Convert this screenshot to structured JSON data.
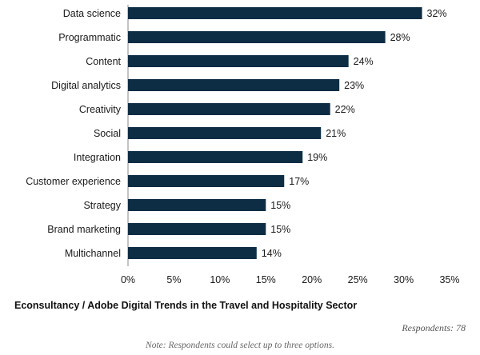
{
  "chart_data": {
    "type": "bar",
    "orientation": "horizontal",
    "categories": [
      "Data science",
      "Programmatic",
      "Content",
      "Digital analytics",
      "Creativity",
      "Social",
      "Integration",
      "Customer experience",
      "Strategy",
      "Brand marketing",
      "Multichannel"
    ],
    "values": [
      32,
      28,
      24,
      23,
      22,
      21,
      19,
      17,
      15,
      15,
      14
    ],
    "value_labels": [
      "32%",
      "28%",
      "24%",
      "23%",
      "22%",
      "21%",
      "19%",
      "17%",
      "15%",
      "15%",
      "14%"
    ],
    "x_ticks": [
      "0%",
      "5%",
      "10%",
      "15%",
      "20%",
      "25%",
      "30%",
      "35%"
    ],
    "xlim": [
      0,
      35
    ],
    "bar_color": "#0d2d45",
    "grid": false
  },
  "caption": "Econsultancy / Adobe Digital Trends in the Travel and Hospitality Sector",
  "respondents": "Respondents: 78",
  "note": "Note: Respondents could select up to three options."
}
